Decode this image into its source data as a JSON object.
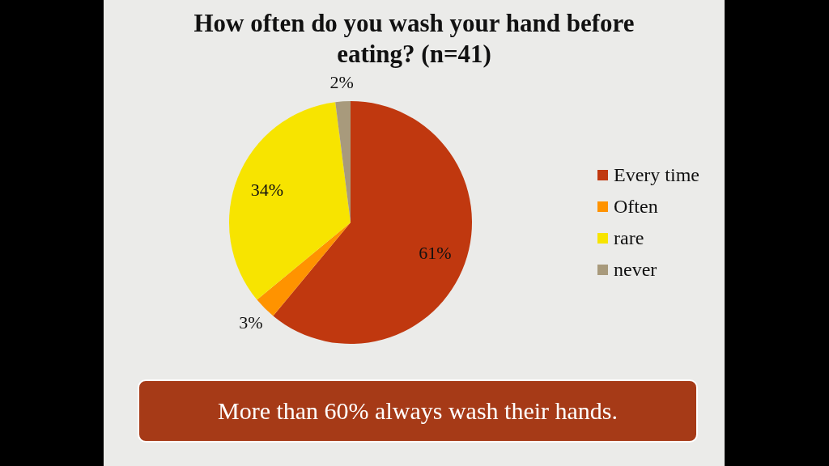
{
  "chart_data": {
    "type": "pie",
    "title": "How often do you wash your hand before eating? (n=41)",
    "categories": [
      "Every time",
      "Often",
      "rare",
      "never"
    ],
    "values": [
      61,
      3,
      34,
      2
    ],
    "colors": [
      "#c0380f",
      "#ff9300",
      "#f7e400",
      "#a89a7c"
    ],
    "value_labels": [
      "61%",
      "3%",
      "34%",
      "2%"
    ],
    "legend": "right",
    "annotations": [
      "More than 60% always wash their hands."
    ]
  }
}
